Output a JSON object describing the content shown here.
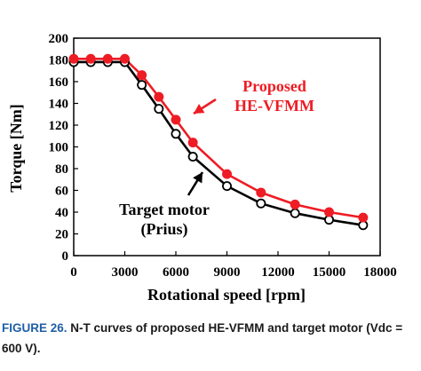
{
  "chart_data": {
    "type": "line",
    "xlabel": "Rotational speed [rpm]",
    "ylabel": "Torque [Nm]",
    "xlim": [
      0,
      18000
    ],
    "ylim": [
      0,
      200
    ],
    "xticks": [
      0,
      3000,
      6000,
      9000,
      12000,
      15000,
      18000
    ],
    "yticks": [
      0,
      20,
      40,
      60,
      80,
      100,
      120,
      140,
      160,
      180,
      200
    ],
    "grid": false,
    "series": [
      {
        "name": "Proposed HE-VFMM",
        "color": "#ee1c24",
        "marker": "filled-circle",
        "x": [
          0,
          1000,
          2000,
          3000,
          4000,
          5000,
          6000,
          7000,
          9000,
          11000,
          13000,
          15000,
          17000
        ],
        "y": [
          181,
          181,
          181,
          181,
          166,
          146,
          125,
          104,
          75,
          58,
          47,
          40,
          35
        ]
      },
      {
        "name": "Target motor (Prius)",
        "color": "#000000",
        "marker": "open-circle",
        "x": [
          0,
          1000,
          2000,
          3000,
          4000,
          5000,
          6000,
          7000,
          9000,
          11000,
          13000,
          15000,
          17000
        ],
        "y": [
          178,
          178,
          178,
          178,
          157,
          135,
          112,
          91,
          64,
          48,
          39,
          33,
          28
        ]
      }
    ],
    "annotations": [
      {
        "lines": [
          "Proposed",
          "HE-VFMM"
        ],
        "color": "#ee1c24"
      },
      {
        "lines": [
          "Target motor",
          "(Prius)"
        ],
        "color": "#000000"
      }
    ]
  },
  "caption": {
    "figure_label": "FIGURE 26.",
    "text": " N-T curves of proposed HE-VFMM and target motor (Vdc = 600 V)."
  }
}
